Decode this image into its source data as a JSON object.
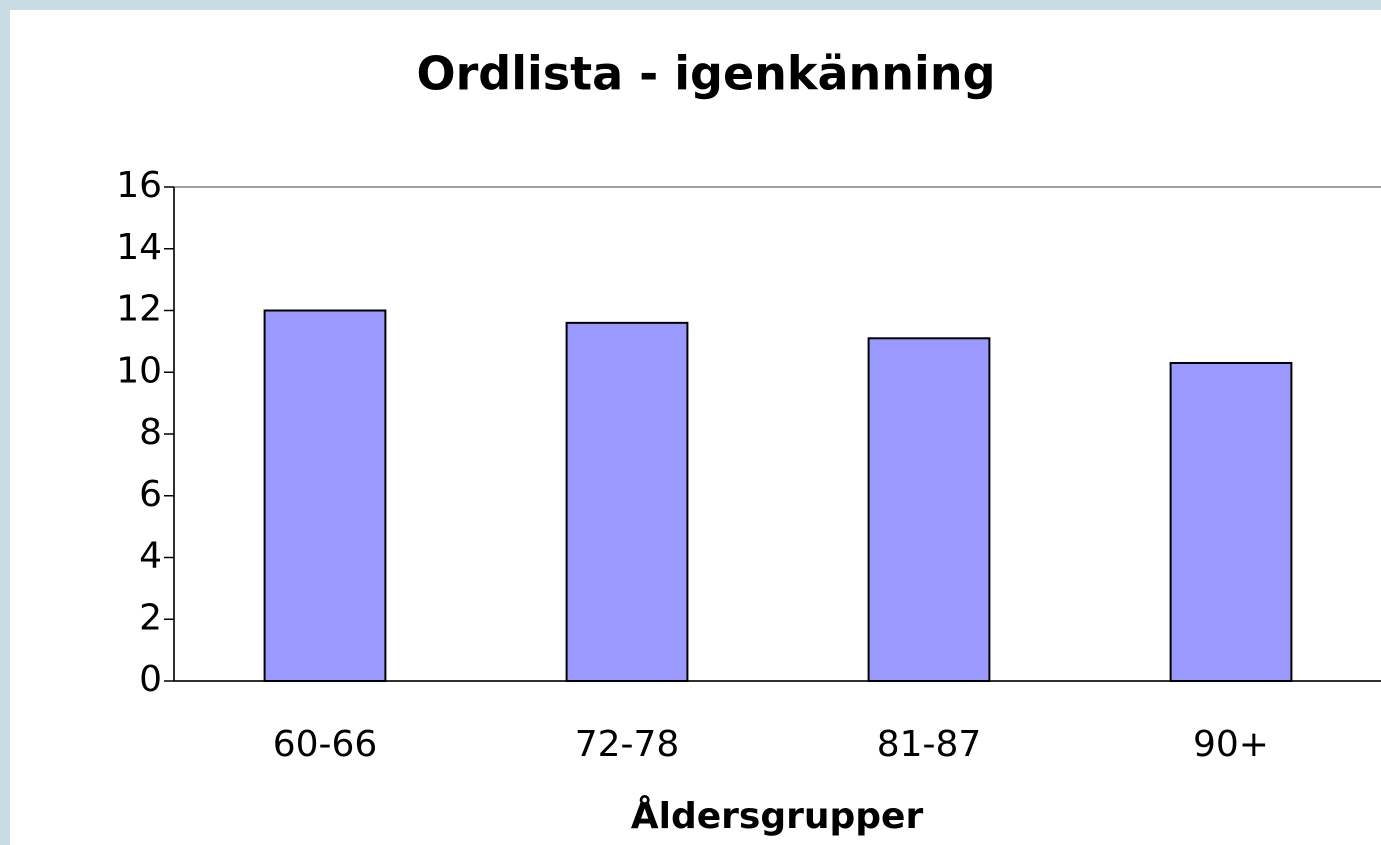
{
  "chart_data": {
    "type": "bar",
    "title": "Ordlista - igenkänning",
    "x_label": "Åldersgrupper",
    "categories": [
      "60-66",
      "72-78",
      "81-87",
      "90+"
    ],
    "values": [
      12,
      11.6,
      11.1,
      10.3
    ],
    "color": "#9999ff",
    "ylim": [
      0,
      16
    ],
    "yticks": [
      0,
      2,
      4,
      6,
      8,
      10,
      12,
      14,
      16
    ],
    "grid": false
  }
}
